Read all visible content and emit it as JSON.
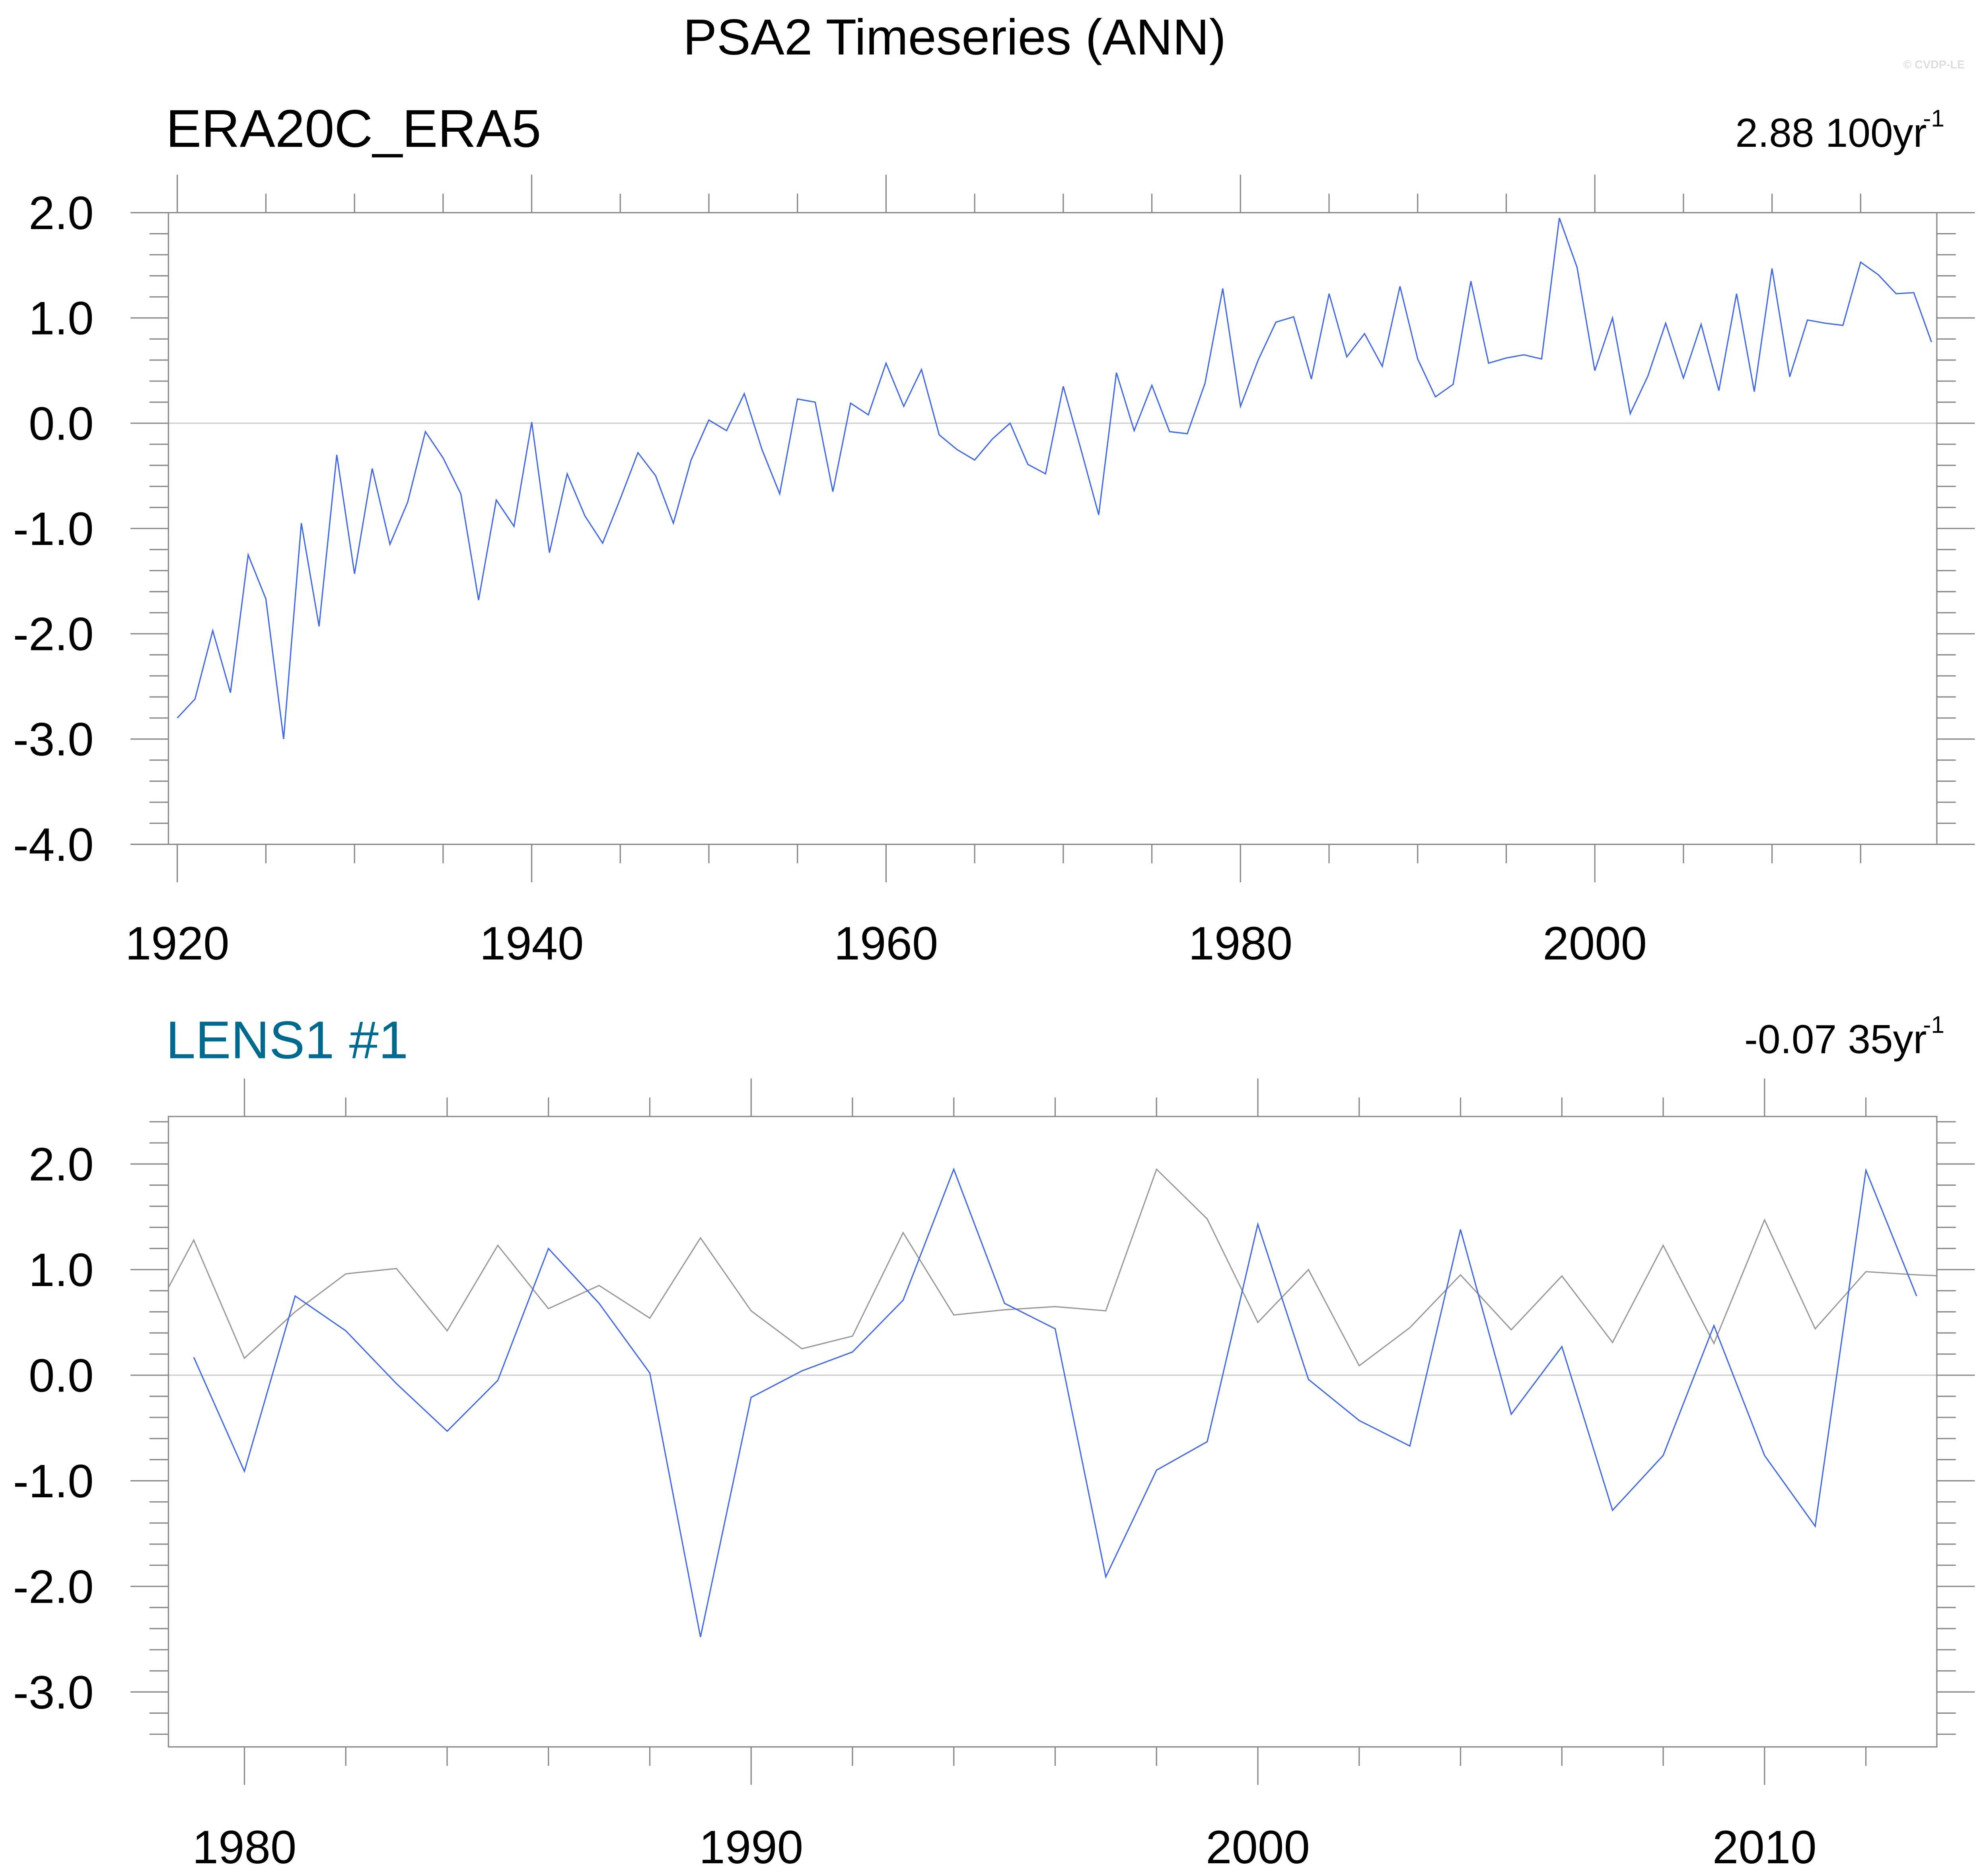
{
  "title": "PSA2 Timeseries (ANN)",
  "watermark": "© CVDP-LE",
  "colors": {
    "obs": "#999999",
    "model": "#4169e1",
    "lens_title": "#006a8e",
    "zero": "#cccccc",
    "axis": "#888888"
  },
  "chart_data": [
    {
      "type": "line",
      "title": "ERA20C_ERA5",
      "trend_label": "2.88 100yr",
      "trend_superscript": "-1",
      "xlim": [
        1919.5,
        2019.3
      ],
      "ylim": [
        -4.0,
        2.0
      ],
      "xticks": [
        1920,
        1940,
        1960,
        1980,
        2000
      ],
      "xtick_labels": [
        "1920",
        "1940",
        "1960",
        "1980",
        "2000"
      ],
      "x_minor_step": 5,
      "yticks": [
        2.0,
        1.0,
        0.0,
        -1.0,
        -2.0,
        -3.0,
        -4.0
      ],
      "ytick_labels": [
        "2.0",
        "1.0",
        "0.0",
        "-1.0",
        "-2.0",
        "-3.0",
        "-4.0"
      ],
      "y_minor_step": 0.2,
      "series": [
        {
          "name": "ERA20C_ERA5",
          "color": "#4169e1",
          "x_start": 1920,
          "values": [
            -2.8,
            -2.62,
            -1.97,
            -2.56,
            -1.25,
            -1.67,
            -3.0,
            -0.95,
            -1.93,
            -0.3,
            -1.43,
            -0.43,
            -1.15,
            -0.75,
            -0.08,
            -0.33,
            -0.67,
            -1.68,
            -0.73,
            -0.98,
            0.01,
            -1.23,
            -0.48,
            -0.88,
            -1.14,
            -0.72,
            -0.28,
            -0.5,
            -0.95,
            -0.35,
            0.03,
            -0.07,
            0.28,
            -0.25,
            -0.67,
            0.23,
            0.2,
            -0.65,
            0.19,
            0.08,
            0.57,
            0.16,
            0.51,
            -0.11,
            -0.25,
            -0.35,
            -0.15,
            0.0,
            -0.39,
            -0.48,
            0.35,
            -0.25,
            -0.87,
            0.48,
            -0.07,
            0.36,
            -0.08,
            -0.1,
            0.38,
            1.28,
            0.16,
            0.6,
            0.96,
            1.01,
            0.42,
            1.23,
            0.63,
            0.85,
            0.54,
            1.3,
            0.61,
            0.25,
            0.37,
            1.35,
            0.57,
            0.62,
            0.65,
            0.61,
            1.95,
            1.48,
            0.5,
            1.0,
            0.09,
            0.45,
            0.95,
            0.43,
            0.94,
            0.31,
            1.23,
            0.3,
            1.47,
            0.44,
            0.98,
            0.95,
            0.93,
            1.53,
            1.41,
            1.23,
            1.24,
            0.77
          ]
        }
      ]
    },
    {
      "type": "line",
      "title": "LENS1 #1",
      "trend_label": "-0.07 35yr",
      "trend_superscript": "-1",
      "xlim": [
        1978.5,
        2013.4
      ],
      "ylim": [
        -3.52,
        2.45
      ],
      "xticks": [
        1980,
        1990,
        2000,
        2010
      ],
      "xtick_labels": [
        "1980",
        "1990",
        "2000",
        "2010"
      ],
      "x_minor_step": 2,
      "yticks": [
        2.0,
        1.0,
        0.0,
        -1.0,
        -2.0,
        -3.0
      ],
      "ytick_labels": [
        "2.0",
        "1.0",
        "0.0",
        "-1.0",
        "-2.0",
        "-3.0"
      ],
      "y_minor_step": 0.2,
      "series": [
        {
          "name": "ERA20C_ERA5",
          "color": "#999999",
          "x_start": 1978,
          "values": [
            0.38,
            1.28,
            0.16,
            0.6,
            0.96,
            1.01,
            0.42,
            1.23,
            0.63,
            0.85,
            0.54,
            1.3,
            0.61,
            0.25,
            0.37,
            1.35,
            0.57,
            0.62,
            0.65,
            0.61,
            1.95,
            1.48,
            0.5,
            1.0,
            0.09,
            0.45,
            0.95,
            0.43,
            0.94,
            0.31,
            1.23,
            0.3,
            1.47,
            0.44,
            0.98,
            0.95,
            0.93
          ]
        },
        {
          "name": "LENS1 #1",
          "color": "#4169e1",
          "x_start": 1979,
          "values": [
            0.17,
            -0.91,
            0.75,
            0.42,
            -0.08,
            -0.53,
            -0.05,
            1.2,
            0.68,
            0.02,
            -2.48,
            -0.21,
            0.04,
            0.22,
            0.71,
            1.95,
            0.68,
            0.44,
            -1.91,
            -0.9,
            -0.63,
            1.43,
            -0.04,
            -0.43,
            -0.67,
            1.38,
            -0.37,
            0.27,
            -1.28,
            -0.76,
            0.47,
            -0.76,
            -1.43,
            1.94,
            0.75
          ]
        }
      ]
    }
  ]
}
